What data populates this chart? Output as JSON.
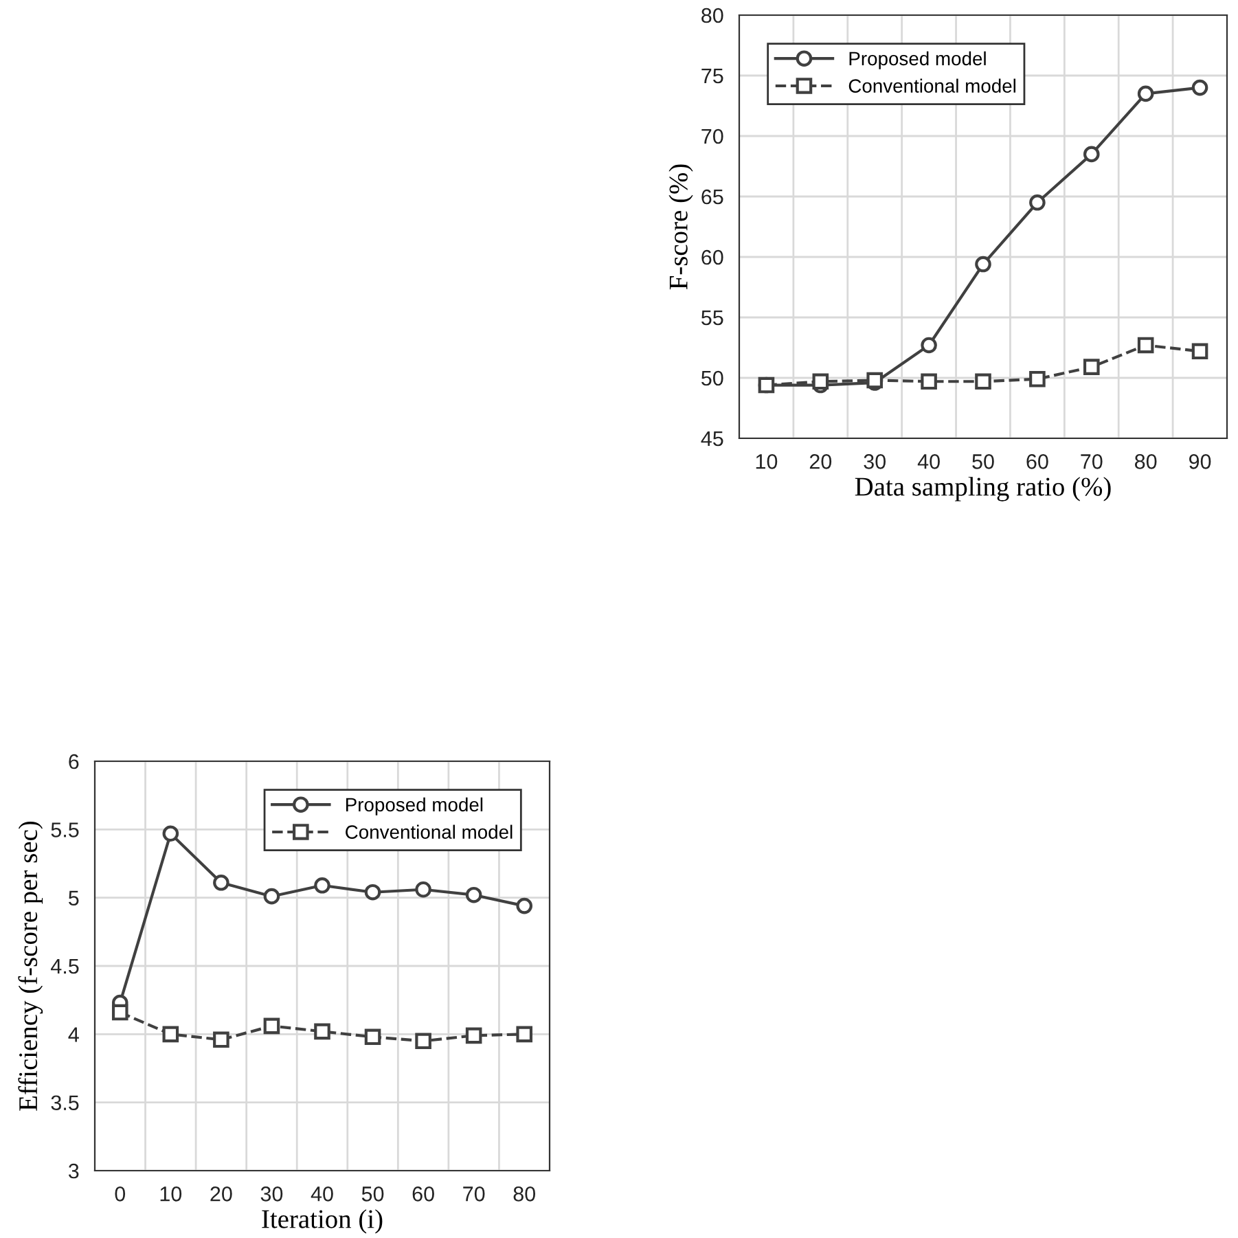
{
  "chart_data": [
    {
      "type": "line",
      "xlabel": "Data sampling ratio (%)",
      "ylabel": "F-score (%)",
      "categories": [
        "10",
        "20",
        "30",
        "40",
        "50",
        "60",
        "70",
        "80",
        "90"
      ],
      "ylim": [
        45,
        80
      ],
      "yticks": [
        45,
        50,
        55,
        60,
        65,
        70,
        75,
        80
      ],
      "grid": true,
      "legend": "top left",
      "series": [
        {
          "name": "Proposed model",
          "color": "#404040",
          "marker": "circle",
          "line_style": "solid",
          "values": [
            49.4,
            49.4,
            49.6,
            52.7,
            59.4,
            64.5,
            68.5,
            73.5,
            74.0
          ]
        },
        {
          "name": "Conventional model",
          "color": "#404040",
          "marker": "square",
          "line_style": "dashed",
          "values": [
            49.4,
            49.7,
            49.8,
            49.7,
            49.7,
            49.9,
            50.9,
            52.7,
            52.2
          ]
        }
      ]
    },
    {
      "type": "line",
      "xlabel": "Iteration (i)",
      "ylabel": "Efficiency (f-score per sec)",
      "categories": [
        "0",
        "10",
        "20",
        "30",
        "40",
        "50",
        "60",
        "70",
        "80"
      ],
      "ylim": [
        3,
        6
      ],
      "yticks": [
        3,
        3.5,
        4,
        4.5,
        5,
        5.5,
        6
      ],
      "grid": true,
      "legend": "top right",
      "series": [
        {
          "name": "Proposed model",
          "color": "#404040",
          "marker": "circle",
          "line_style": "solid",
          "values": [
            4.23,
            5.47,
            5.11,
            5.01,
            5.09,
            5.04,
            5.06,
            5.02,
            4.94
          ]
        },
        {
          "name": "Conventional model",
          "color": "#404040",
          "marker": "square",
          "line_style": "dashed",
          "values": [
            4.16,
            4.0,
            3.96,
            4.06,
            4.02,
            3.98,
            3.95,
            3.99,
            4.0
          ]
        }
      ]
    }
  ]
}
